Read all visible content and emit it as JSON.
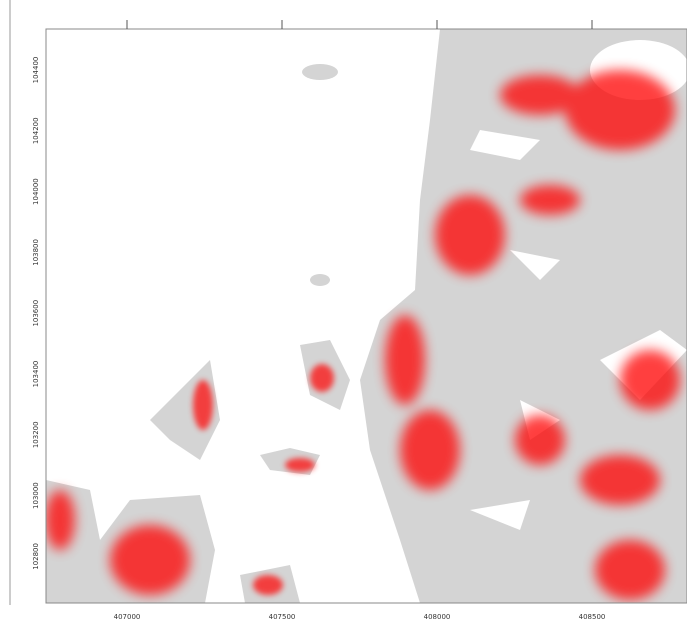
{
  "map": {
    "x_axis": {
      "ticks": [
        407000,
        407500,
        408000,
        408500
      ]
    },
    "y_axis": {
      "ticks": [
        104400,
        104200,
        104000,
        103800,
        103600,
        103400,
        103200,
        103000,
        102800
      ]
    }
  }
}
